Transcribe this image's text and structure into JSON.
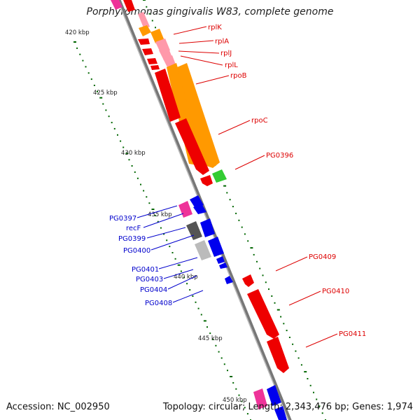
{
  "title": "Porphyromonas gingivalis W83, complete genome",
  "footer": {
    "accession": "Accession: NC_002950",
    "summary": "Topology: circular; Length: 2,343,476 bp; Genes: 1,974"
  },
  "kbp_ticks": [
    {
      "label": "420 kbp"
    },
    {
      "label": "425 kbp"
    },
    {
      "label": "430 kbp"
    },
    {
      "label": "435 kbp"
    },
    {
      "label": "440 kbp"
    },
    {
      "label": "445 kbp"
    },
    {
      "label": "450 kbp"
    }
  ],
  "forward_labels": [
    "rplK",
    "rplA",
    "rplJ",
    "rplL",
    "rpoB",
    "rpoC",
    "PG0396",
    "PG0409",
    "PG0410",
    "PG0411"
  ],
  "reverse_labels": [
    "PG0397",
    "recF",
    "PG0399",
    "PG0400",
    "PG0401",
    "PG0403",
    "PG0404",
    "PG0408"
  ],
  "colors": {
    "forward_gene": "#ee0000",
    "reverse_gene": "#0000ee",
    "rRNA_orange": "#ff9900",
    "pink": "#ff99aa",
    "magenta": "#ee3399",
    "green": "#33cc33",
    "dark_gray": "#555555",
    "light_gray": "#bbbbbb",
    "backbone": "#888888",
    "gc_dots": "#006600",
    "label_line_fwd": "#dd0000",
    "label_line_rev": "#0000cc"
  }
}
